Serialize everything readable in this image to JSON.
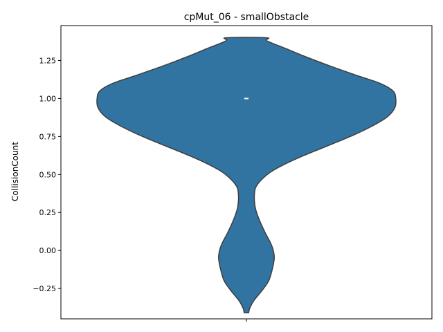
{
  "chart_data": {
    "type": "violin",
    "title": "cpMut_06 - smallObstacle",
    "xlabel": "",
    "ylabel": "CollisionCount",
    "ylim": [
      -0.45,
      1.48
    ],
    "yticks": [
      -0.25,
      0.0,
      0.25,
      0.5,
      0.75,
      1.0,
      1.25
    ],
    "ytick_labels": [
      "−0.25",
      "0.00",
      "0.25",
      "0.50",
      "0.75",
      "1.00",
      "1.25"
    ],
    "xtick_labels": [
      ""
    ],
    "grid": false,
    "fill_color": "#3274a1",
    "edge_color": "#3d3d3d",
    "inner_marker_color": "#ffffff",
    "median": 1.0,
    "density_profile": {
      "y": [
        -0.41,
        -0.38,
        -0.33,
        -0.27,
        -0.2,
        -0.12,
        -0.05,
        0.0,
        0.05,
        0.12,
        0.2,
        0.27,
        0.33,
        0.38,
        0.42,
        0.47,
        0.52,
        0.57,
        0.62,
        0.68,
        0.75,
        0.82,
        0.88,
        0.94,
        1.0,
        1.05,
        1.1,
        1.15,
        1.21,
        1.27,
        1.33,
        1.38,
        1.4
      ],
      "half_width": [
        0.012,
        0.018,
        0.04,
        0.08,
        0.12,
        0.14,
        0.15,
        0.145,
        0.13,
        0.1,
        0.07,
        0.05,
        0.043,
        0.044,
        0.052,
        0.085,
        0.135,
        0.21,
        0.3,
        0.42,
        0.56,
        0.68,
        0.76,
        0.8,
        0.805,
        0.79,
        0.72,
        0.6,
        0.46,
        0.33,
        0.21,
        0.11,
        0.108
      ]
    }
  }
}
